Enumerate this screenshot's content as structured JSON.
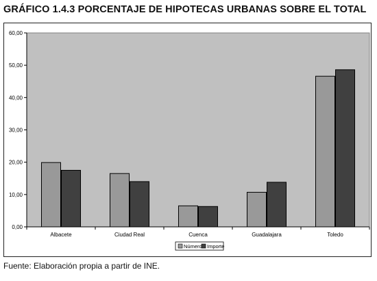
{
  "title": "GRÁFICO 1.4.3 PORCENTAJE DE HIPOTECAS URBANAS SOBRE EL TOTAL",
  "source": "Fuente: Elaboración propia a partir de INE.",
  "colors": {
    "plot_bg": "#c0c0c0",
    "numero": "#999999",
    "importe": "#404040",
    "stroke": "#000000"
  },
  "chart_data": {
    "type": "bar",
    "categories": [
      "Albacete",
      "Ciudad Real",
      "Cuenca",
      "Guadalajara",
      "Toledo"
    ],
    "series": [
      {
        "name": "Número",
        "values": [
          19.9,
          16.5,
          6.5,
          10.7,
          46.6
        ]
      },
      {
        "name": "Importe",
        "values": [
          17.5,
          14.0,
          6.3,
          13.8,
          48.6
        ]
      }
    ],
    "ylim": [
      0,
      60
    ],
    "yticks": [
      "0,00",
      "10,00",
      "20,00",
      "30,00",
      "40,00",
      "50,00",
      "60,00"
    ],
    "ytick_values": [
      0,
      10,
      20,
      30,
      40,
      50,
      60
    ],
    "grid": false,
    "legend_position": "bottom-center"
  }
}
